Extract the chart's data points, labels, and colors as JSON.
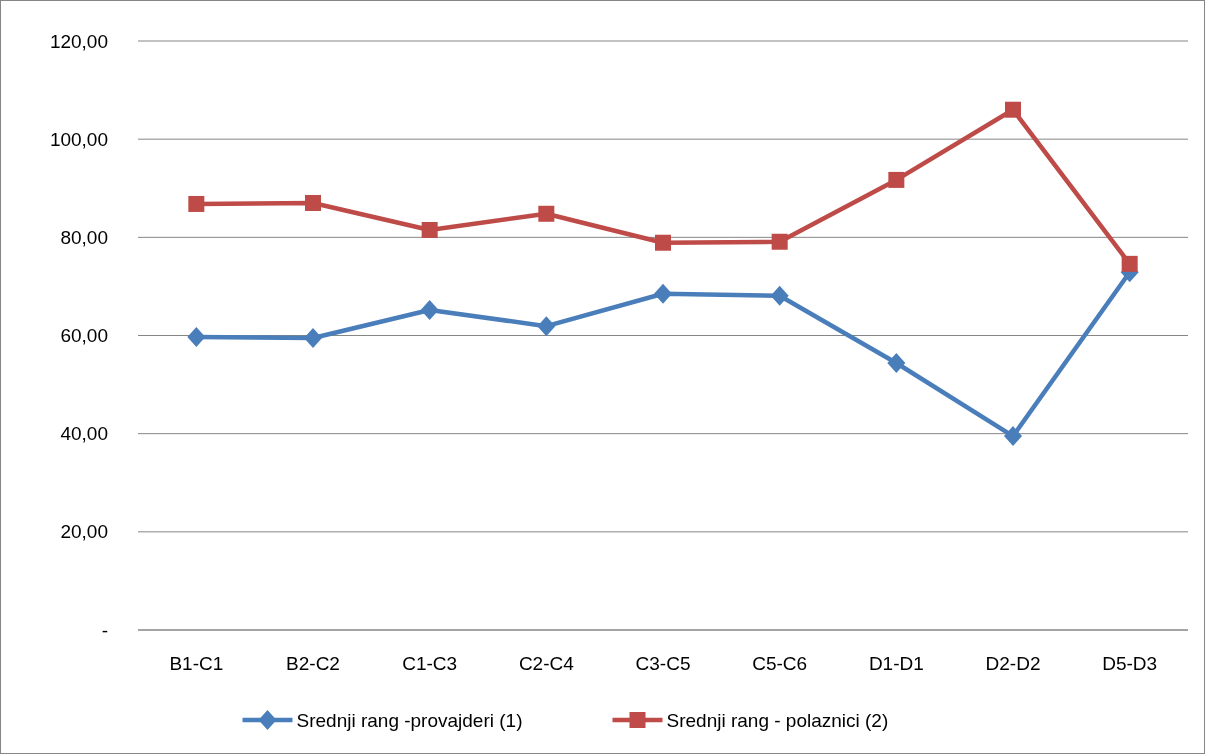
{
  "chart_data": {
    "type": "line",
    "categories": [
      "B1-C1",
      "B2-C2",
      "C1-C3",
      "C2-C4",
      "C3-C5",
      "C5-C6",
      "D1-D1",
      "D2-D2",
      "D5-D3"
    ],
    "series": [
      {
        "name": "Srednji rang -provajderi (1)",
        "color": "#4a7ebb",
        "marker": "diamond",
        "values": [
          59.7,
          59.5,
          65.2,
          61.9,
          68.5,
          68.1,
          54.4,
          39.5,
          72.9
        ]
      },
      {
        "name": "Srednji rang - polaznici (2)",
        "color": "#be4b48",
        "marker": "square",
        "values": [
          86.8,
          87.0,
          81.5,
          84.8,
          78.9,
          79.1,
          91.7,
          106.0,
          74.6
        ]
      }
    ],
    "ylim": [
      0,
      120
    ],
    "yticks": [
      {
        "value": 0,
        "label": "-"
      },
      {
        "value": 20,
        "label": "20,00"
      },
      {
        "value": 40,
        "label": "40,00"
      },
      {
        "value": 60,
        "label": "60,00"
      },
      {
        "value": 80,
        "label": "80,00"
      },
      {
        "value": 100,
        "label": "100,00"
      },
      {
        "value": 120,
        "label": "120,00"
      }
    ],
    "grid": "y",
    "legend": "bottom",
    "line_style": "solid"
  }
}
